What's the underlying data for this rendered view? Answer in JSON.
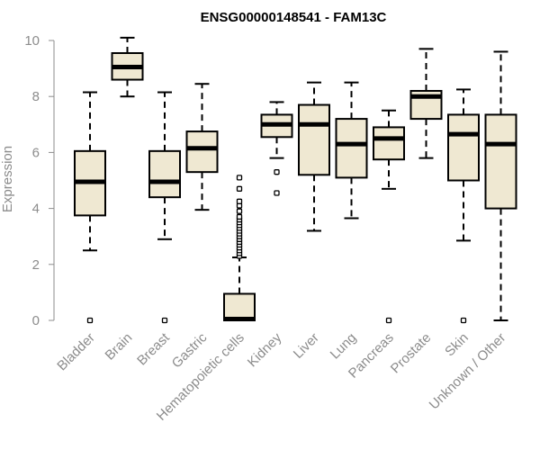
{
  "chart_data": {
    "type": "boxplot",
    "title": "ENSG00000148541 - FAM13C",
    "xlabel": "",
    "ylabel": "Expression",
    "ylim": [
      0,
      10
    ],
    "yticks": [
      0,
      2,
      4,
      6,
      8,
      10
    ],
    "box_fill": "#efe8d2",
    "categories": [
      "Bladder",
      "Brain",
      "Breast",
      "Gastric",
      "Hematopoietic cells",
      "Kidney",
      "Liver",
      "Lung",
      "Pancreas",
      "Prostate",
      "Skin",
      "Unknown / Other"
    ],
    "boxes": [
      {
        "min": 2.5,
        "q1": 3.75,
        "median": 4.95,
        "q3": 6.05,
        "max": 8.15,
        "outliers": [
          0.0
        ]
      },
      {
        "min": 8.0,
        "q1": 8.6,
        "median": 9.05,
        "q3": 9.55,
        "max": 10.1,
        "outliers": []
      },
      {
        "min": 2.9,
        "q1": 4.4,
        "median": 4.95,
        "q3": 6.05,
        "max": 8.15,
        "outliers": [
          0.0
        ]
      },
      {
        "min": 3.95,
        "q1": 5.3,
        "median": 6.15,
        "q3": 6.75,
        "max": 8.45,
        "outliers": []
      },
      {
        "min": 0.0,
        "q1": 0.0,
        "median": 0.05,
        "q3": 0.95,
        "max": 2.25,
        "outliers": [
          2.3,
          2.4,
          2.5,
          2.6,
          2.7,
          2.8,
          2.9,
          3.0,
          3.1,
          3.2,
          3.3,
          3.4,
          3.5,
          3.6,
          3.7,
          3.9,
          4.1,
          4.25,
          4.7,
          5.1
        ]
      },
      {
        "min": 5.8,
        "q1": 6.55,
        "median": 7.0,
        "q3": 7.35,
        "max": 7.8,
        "outliers": [
          5.3,
          4.55
        ]
      },
      {
        "min": 3.2,
        "q1": 5.2,
        "median": 7.0,
        "q3": 7.7,
        "max": 8.5,
        "outliers": []
      },
      {
        "min": 3.65,
        "q1": 5.1,
        "median": 6.3,
        "q3": 7.2,
        "max": 8.5,
        "outliers": []
      },
      {
        "min": 4.7,
        "q1": 5.75,
        "median": 6.5,
        "q3": 6.9,
        "max": 7.5,
        "outliers": [
          0.0
        ]
      },
      {
        "min": 5.8,
        "q1": 7.2,
        "median": 8.0,
        "q3": 8.2,
        "max": 9.7,
        "outliers": []
      },
      {
        "min": 2.85,
        "q1": 5.0,
        "median": 6.65,
        "q3": 7.35,
        "max": 8.25,
        "outliers": [
          0.0
        ]
      },
      {
        "min": 0.0,
        "q1": 4.0,
        "median": 6.3,
        "q3": 7.35,
        "max": 9.6,
        "outliers": []
      }
    ]
  }
}
